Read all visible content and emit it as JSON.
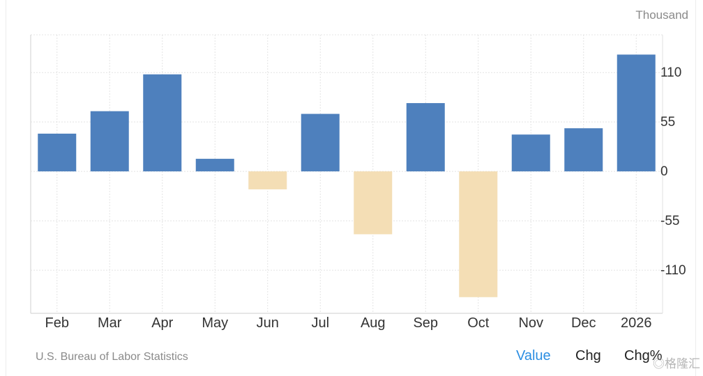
{
  "unit_label": "Thousand",
  "source": "U.S. Bureau of Labor Statistics",
  "tabs": [
    {
      "label": "Value",
      "active": true
    },
    {
      "label": "Chg",
      "active": false
    },
    {
      "label": "Chg%",
      "active": false
    }
  ],
  "watermark": "格隆汇",
  "colors": {
    "positive": "#4e80bd",
    "negative": "#f4deb5",
    "grid": "#e4e4e4",
    "axis_text": "#333333",
    "active_tab": "#2b8ee2"
  },
  "chart_data": {
    "type": "bar",
    "title": "",
    "xlabel": "",
    "ylabel": "Thousand",
    "categories": [
      "Feb",
      "Mar",
      "Apr",
      "May",
      "Jun",
      "Jul",
      "Aug",
      "Sep",
      "Oct",
      "Nov",
      "Dec",
      "2026"
    ],
    "values": [
      42,
      67,
      108,
      14,
      -20,
      64,
      -70,
      76,
      -140,
      41,
      48,
      130
    ],
    "yticks": [
      110,
      55,
      0,
      -55,
      -110
    ],
    "ylim": [
      -158,
      152
    ],
    "grid": true,
    "axis_side": "right"
  }
}
